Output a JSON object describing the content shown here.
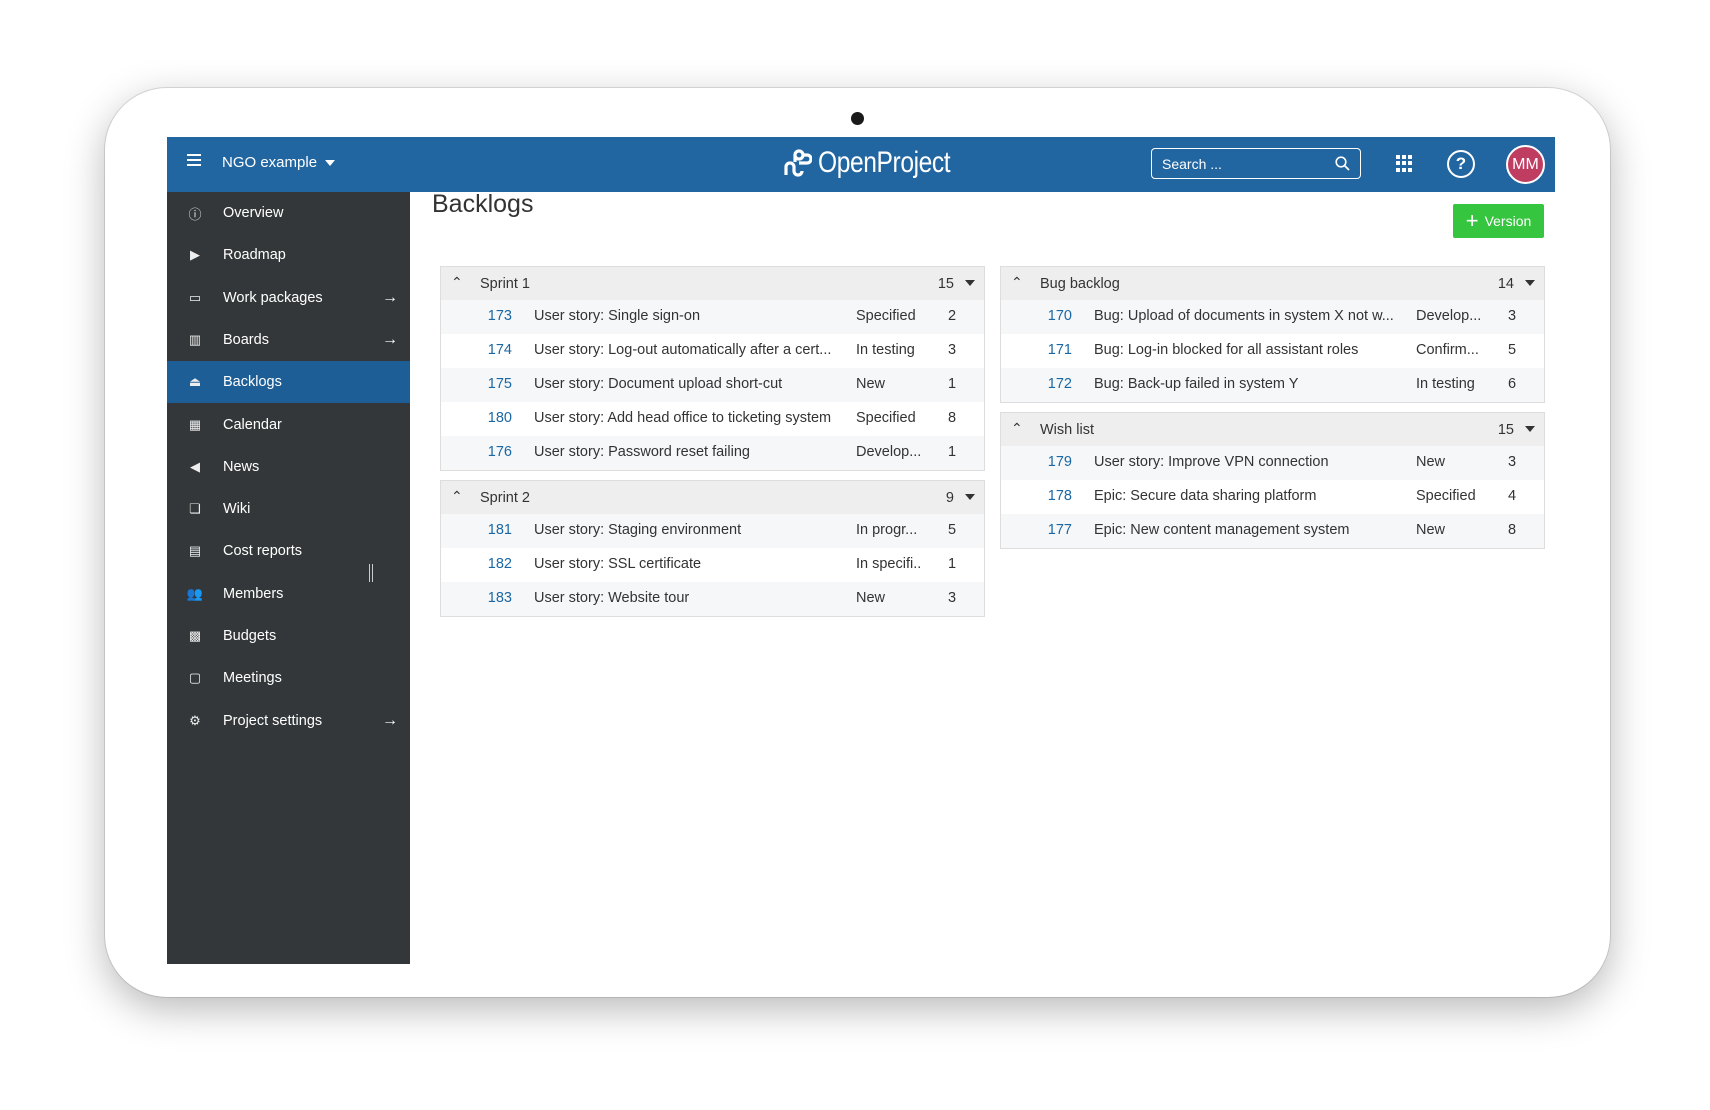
{
  "header": {
    "project": "NGO example",
    "logo": "OpenProject",
    "search_placeholder": "Search ...",
    "avatar": "MM",
    "help": "?"
  },
  "sidebar": {
    "items": [
      {
        "label": "Overview",
        "icon": "info-icon",
        "glyph": "ⓘ"
      },
      {
        "label": "Roadmap",
        "icon": "tag-icon",
        "glyph": "▶"
      },
      {
        "label": "Work packages",
        "icon": "work-packages-icon",
        "glyph": "▭",
        "arrow": true
      },
      {
        "label": "Boards",
        "icon": "boards-icon",
        "glyph": "▥",
        "arrow": true
      },
      {
        "label": "Backlogs",
        "icon": "backlogs-icon",
        "glyph": "⏏",
        "active": true
      },
      {
        "label": "Calendar",
        "icon": "calendar-icon",
        "glyph": "▦"
      },
      {
        "label": "News",
        "icon": "megaphone-icon",
        "glyph": "◀"
      },
      {
        "label": "Wiki",
        "icon": "book-icon",
        "glyph": "❏"
      },
      {
        "label": "Cost reports",
        "icon": "cost-report-icon",
        "glyph": "▤"
      },
      {
        "label": "Members",
        "icon": "members-icon",
        "glyph": "👥"
      },
      {
        "label": "Budgets",
        "icon": "budget-icon",
        "glyph": "▩"
      },
      {
        "label": "Meetings",
        "icon": "speech-bubble-icon",
        "glyph": "▢"
      },
      {
        "label": "Project settings",
        "icon": "gears-icon",
        "glyph": "⚙",
        "arrow": true
      }
    ]
  },
  "main": {
    "title": "Backlogs",
    "version_button": "Version",
    "backlogs": [
      {
        "name": "Sprint 1",
        "points": "15",
        "rows": [
          {
            "id": "173",
            "subject": "User story: Single sign-on",
            "status": "Specified",
            "points": "2"
          },
          {
            "id": "174",
            "subject": "User story: Log-out automatically after a cert...",
            "status": "In testing",
            "points": "3"
          },
          {
            "id": "175",
            "subject": "User story: Document upload short-cut",
            "status": "New",
            "points": "1"
          },
          {
            "id": "180",
            "subject": "User story: Add head office to ticketing system",
            "status": "Specified",
            "points": "8"
          },
          {
            "id": "176",
            "subject": "User story: Password reset failing",
            "status": "Develop...",
            "points": "1"
          }
        ]
      },
      {
        "name": "Sprint 2",
        "points": "9",
        "rows": [
          {
            "id": "181",
            "subject": "User story: Staging environment",
            "status": "In progr...",
            "points": "5"
          },
          {
            "id": "182",
            "subject": "User story: SSL certificate",
            "status": "In specifi..",
            "points": "1"
          },
          {
            "id": "183",
            "subject": "User story: Website tour",
            "status": "New",
            "points": "3"
          }
        ]
      },
      {
        "name": "Bug backlog",
        "points": "14",
        "rows": [
          {
            "id": "170",
            "subject": "Bug: Upload of documents in system X not w...",
            "status": "Develop...",
            "points": "3"
          },
          {
            "id": "171",
            "subject": "Bug: Log-in blocked for all assistant roles",
            "status": "Confirm...",
            "points": "5"
          },
          {
            "id": "172",
            "subject": "Bug: Back-up failed in system Y",
            "status": "In testing",
            "points": "6"
          }
        ]
      },
      {
        "name": "Wish list",
        "points": "15",
        "rows": [
          {
            "id": "179",
            "subject": "User story: Improve VPN connection",
            "status": "New",
            "points": "3"
          },
          {
            "id": "178",
            "subject": "Epic: Secure data sharing platform",
            "status": "Specified",
            "points": "4"
          },
          {
            "id": "177",
            "subject": "Epic: New content management system",
            "status": "New",
            "points": "8"
          }
        ]
      }
    ]
  },
  "colors": {
    "header": "#2166a1",
    "sidebar": "#333739",
    "active": "#1e5e97",
    "accent_button": "#35c53f",
    "link": "#1a67a3",
    "avatar": "#c03d62"
  }
}
